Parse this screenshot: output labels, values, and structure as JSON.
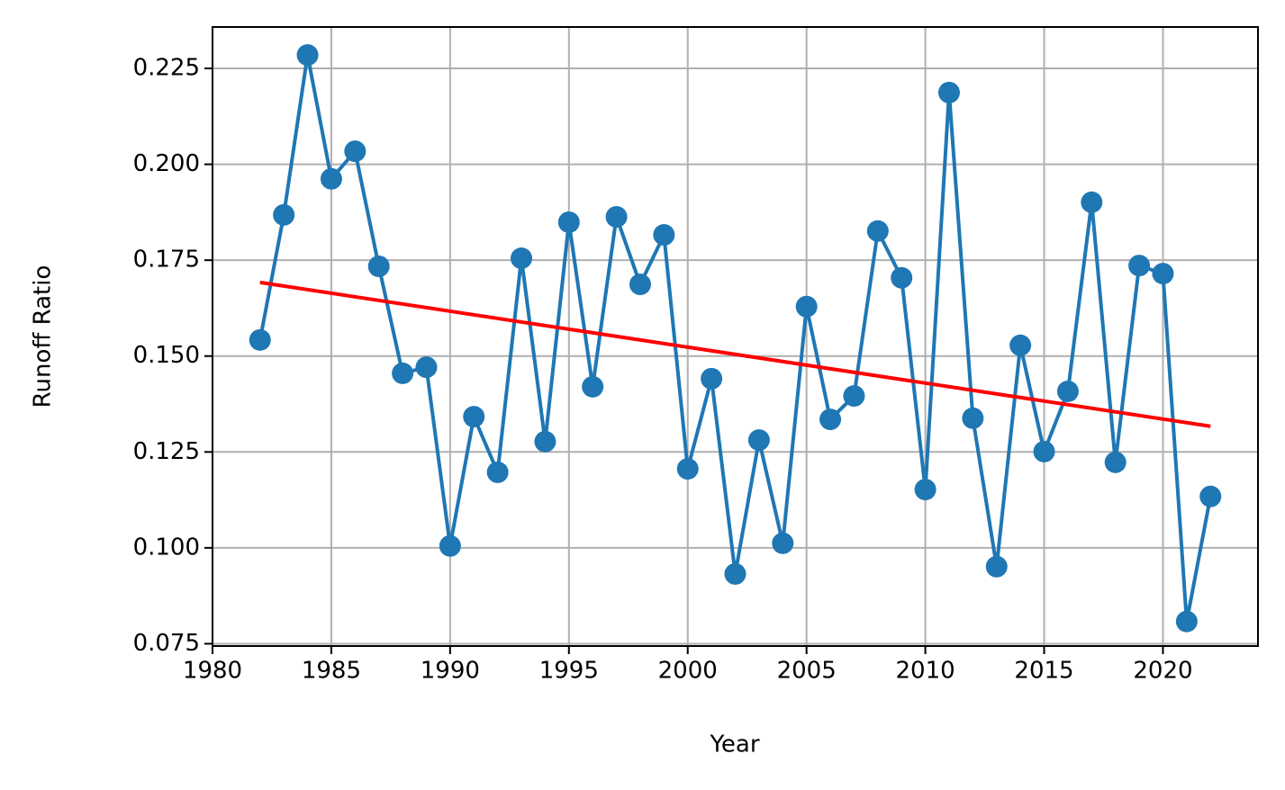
{
  "chart_data": {
    "type": "line",
    "x_label": "Year",
    "y_label": "Runoff Ratio",
    "x": [
      1982,
      1983,
      1984,
      1985,
      1986,
      1987,
      1988,
      1989,
      1990,
      1991,
      1992,
      1993,
      1994,
      1995,
      1996,
      1997,
      1998,
      1999,
      2000,
      2001,
      2002,
      2003,
      2004,
      2005,
      2006,
      2007,
      2008,
      2009,
      2010,
      2011,
      2012,
      2013,
      2014,
      2015,
      2016,
      2017,
      2018,
      2019,
      2020,
      2021,
      2022
    ],
    "series": [
      {
        "color": "#1f77b4",
        "values": [
          0.1542,
          0.1868,
          0.2285,
          0.1962,
          0.2034,
          0.1734,
          0.1455,
          0.1471,
          0.1005,
          0.1342,
          0.1197,
          0.1755,
          0.1277,
          0.1849,
          0.142,
          0.1863,
          0.1687,
          0.1816,
          0.1206,
          0.1441,
          0.0932,
          0.1281,
          0.1012,
          0.1629,
          0.1335,
          0.1396,
          0.1826,
          0.1704,
          0.1152,
          0.2187,
          0.1338,
          0.0951,
          0.1528,
          0.1251,
          0.1408,
          0.1901,
          0.1223,
          0.1736,
          0.1715,
          0.0808,
          0.1134
        ]
      }
    ],
    "trend": {
      "color": "#ff0000",
      "x": [
        1982,
        2022
      ],
      "values": [
        0.1692,
        0.1317
      ]
    },
    "xlim": [
      1980,
      2024
    ],
    "ylim": [
      0.0744,
      0.2358
    ],
    "xticks": [
      1980,
      1985,
      1990,
      1995,
      2000,
      2005,
      2010,
      2015,
      2020
    ],
    "yticks": [
      0.075,
      {
        "value": 0.1,
        "label": "0.100"
      },
      0.125,
      {
        "value": 0.15,
        "label": "0.150"
      },
      0.175,
      {
        "value": 0.2,
        "label": "0.200"
      },
      0.225
    ],
    "grid": true
  }
}
